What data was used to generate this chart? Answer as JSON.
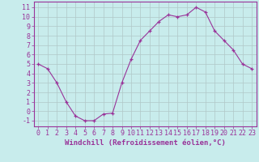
{
  "x": [
    0,
    1,
    2,
    3,
    4,
    5,
    6,
    7,
    8,
    9,
    10,
    11,
    12,
    13,
    14,
    15,
    16,
    17,
    18,
    19,
    20,
    21,
    22,
    23
  ],
  "y": [
    5,
    4.5,
    3,
    1,
    -0.5,
    -1,
    -1,
    -0.3,
    -0.2,
    3,
    5.5,
    7.5,
    8.5,
    9.5,
    10.2,
    10,
    10.2,
    11,
    10.5,
    8.5,
    7.5,
    6.5,
    5,
    4.5
  ],
  "line_color": "#993399",
  "marker": "+",
  "bg_color": "#c8ecec",
  "grid_color": "#b0c8c8",
  "xlabel": "Windchill (Refroidissement éolien,°C)",
  "xlabel_color": "#993399",
  "ylabel_ticks": [
    -1,
    0,
    1,
    2,
    3,
    4,
    5,
    6,
    7,
    8,
    9,
    10,
    11
  ],
  "xlim": [
    -0.5,
    23.5
  ],
  "ylim": [
    -1.6,
    11.6
  ],
  "tick_color": "#993399",
  "axis_label_fontsize": 6.5,
  "tick_fontsize": 6.0,
  "linewidth": 0.8,
  "markersize": 3.0
}
